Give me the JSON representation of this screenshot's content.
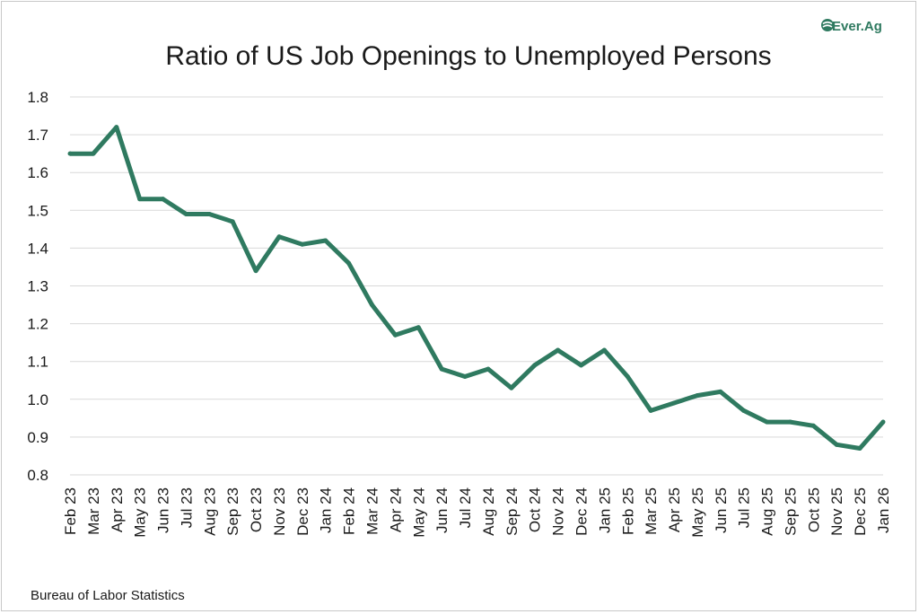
{
  "logo": {
    "text": "Ever.Ag",
    "color": "#2f7a60"
  },
  "source": "Bureau of Labor Statistics",
  "chart_data": {
    "type": "line",
    "title": "Ratio of US Job Openings to Unemployed Persons",
    "xlabel": "",
    "ylabel": "",
    "ylim": [
      0.8,
      1.8
    ],
    "yticks": [
      "0.8",
      "0.9",
      "1.0",
      "1.1",
      "1.2",
      "1.3",
      "1.4",
      "1.5",
      "1.6",
      "1.7",
      "1.8"
    ],
    "grid": true,
    "line_color": "#2f7a60",
    "categories": [
      "Feb 23",
      "Mar 23",
      "Apr 23",
      "May 23",
      "Jun 23",
      "Jul 23",
      "Aug 23",
      "Sep 23",
      "Oct 23",
      "Nov 23",
      "Dec 23",
      "Jan 24",
      "Feb 24",
      "Mar 24",
      "Apr 24",
      "May 24",
      "Jun 24",
      "Jul 24",
      "Aug 24",
      "Sep 24",
      "Oct 24",
      "Nov 24",
      "Dec 24",
      "Jan 25",
      "Feb 25",
      "Mar 25",
      "Apr 25",
      "May 25",
      "Jun 25",
      "Jul 25",
      "Aug 25",
      "Sep 25",
      "Oct 25",
      "Nov 25",
      "Dec 25",
      "Jan 26"
    ],
    "series": [
      {
        "name": "Ratio",
        "values": [
          1.65,
          1.65,
          1.72,
          1.53,
          1.53,
          1.49,
          1.49,
          1.47,
          1.34,
          1.43,
          1.41,
          1.42,
          1.36,
          1.25,
          1.17,
          1.19,
          1.08,
          1.06,
          1.08,
          1.03,
          1.09,
          1.13,
          1.09,
          1.13,
          1.06,
          0.97,
          0.99,
          1.01,
          1.02,
          0.97,
          0.94,
          0.94,
          0.93,
          0.88,
          0.87,
          0.94
        ]
      }
    ]
  }
}
